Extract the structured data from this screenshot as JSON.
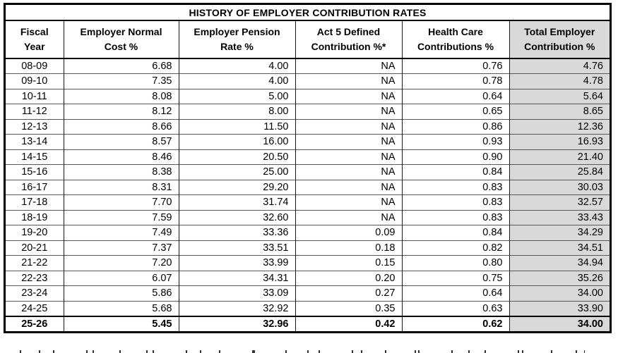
{
  "colors": {
    "shaded_column": "#D9D9D9",
    "outer_border": "#000000",
    "row_line": "#595959"
  },
  "chart_data": {
    "type": "table",
    "title": "HISTORY OF EMPLOYER CONTRIBUTION RATES",
    "columns": [
      "Fiscal Year",
      "Employer Normal Cost %",
      "Employer Pension Rate %",
      "Act 5 Defined Contribution %*",
      "Health Care Contributions %",
      "Total Employer Contribution %"
    ],
    "header_lines": [
      [
        "Fiscal",
        "Year"
      ],
      [
        "Employer Normal",
        "Cost %"
      ],
      [
        "Employer Pension",
        "Rate %"
      ],
      [
        "Act 5 Defined",
        "Contribution %*"
      ],
      [
        "Health Care",
        "Contributions %"
      ],
      [
        "Total Employer",
        "Contribution %"
      ]
    ],
    "rows": [
      [
        "08-09",
        "6.68",
        "4.00",
        "NA",
        "0.76",
        "4.76"
      ],
      [
        "09-10",
        "7.35",
        "4.00",
        "NA",
        "0.78",
        "4.78"
      ],
      [
        "10-11",
        "8.08",
        "5.00",
        "NA",
        "0.64",
        "5.64"
      ],
      [
        "11-12",
        "8.12",
        "8.00",
        "NA",
        "0.65",
        "8.65"
      ],
      [
        "12-13",
        "8.66",
        "11.50",
        "NA",
        "0.86",
        "12.36"
      ],
      [
        "13-14",
        "8.57",
        "16.00",
        "NA",
        "0.93",
        "16.93"
      ],
      [
        "14-15",
        "8.46",
        "20.50",
        "NA",
        "0.90",
        "21.40"
      ],
      [
        "15-16",
        "8.38",
        "25.00",
        "NA",
        "0.84",
        "25.84"
      ],
      [
        "16-17",
        "8.31",
        "29.20",
        "NA",
        "0.83",
        "30.03"
      ],
      [
        "17-18",
        "7.70",
        "31.74",
        "NA",
        "0.83",
        "32.57"
      ],
      [
        "18-19",
        "7.59",
        "32.60",
        "NA",
        "0.83",
        "33.43"
      ],
      [
        "19-20",
        "7.49",
        "33.36",
        "0.09",
        "0.84",
        "34.29"
      ],
      [
        "20-21",
        "7.37",
        "33.51",
        "0.18",
        "0.82",
        "34.51"
      ],
      [
        "21-22",
        "7.20",
        "33.99",
        "0.15",
        "0.80",
        "34.94"
      ],
      [
        "22-23",
        "6.07",
        "34.31",
        "0.20",
        "0.75",
        "35.26"
      ],
      [
        "23-24",
        "5.86",
        "33.09",
        "0.27",
        "0.64",
        "34.00"
      ],
      [
        "24-25",
        "5.68",
        "32.92",
        "0.35",
        "0.63",
        "33.90"
      ],
      [
        "25-26",
        "5.45",
        "32.96",
        "0.42",
        "0.62",
        "34.00"
      ]
    ],
    "layout_hints": {
      "bold_last_row": true,
      "shaded_column_index": 5,
      "numeric_alignment": "right",
      "fiscal_year_alignment": "center"
    }
  }
}
